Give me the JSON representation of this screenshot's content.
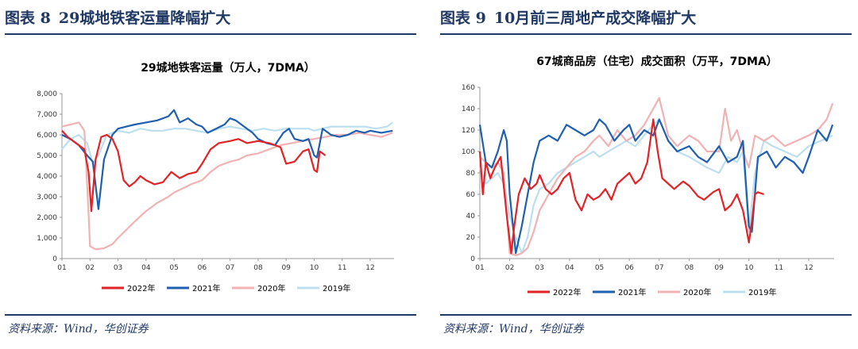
{
  "panels": [
    {
      "fig_label": "图表 8",
      "fig_title": "29城地铁客运量降幅扩大",
      "source": "资料来源：Wind，华创证券"
    },
    {
      "fig_label": "图表 9",
      "fig_title": "10月前三周地产成交降幅扩大",
      "source": "资料来源：Wind，华创证券"
    }
  ],
  "chart_data": [
    {
      "type": "line",
      "title": "29城地铁客运量（万人，7DMA）",
      "x_ticks": [
        "01",
        "02",
        "03",
        "04",
        "05",
        "06",
        "07",
        "08",
        "09",
        "10",
        "11",
        "12"
      ],
      "xlabel": "",
      "ylabel": "",
      "ylim": [
        0,
        8000
      ],
      "y_ticks": [
        "0",
        "1,000",
        "2,000",
        "3,000",
        "4,000",
        "5,000",
        "6,000",
        "7,000",
        "8,000"
      ],
      "y_tick_values": [
        0,
        1000,
        2000,
        3000,
        4000,
        5000,
        6000,
        7000,
        8000
      ],
      "legend_position": "bottom",
      "series": [
        {
          "name": "2022年",
          "color": "#e32227",
          "x": [
            1.0,
            1.2,
            1.5,
            1.8,
            1.95,
            2.05,
            2.2,
            2.4,
            2.6,
            2.8,
            3.0,
            3.2,
            3.4,
            3.6,
            3.8,
            4.0,
            4.3,
            4.6,
            4.9,
            5.2,
            5.5,
            5.8,
            6.0,
            6.3,
            6.6,
            7.0,
            7.3,
            7.6,
            8.0,
            8.4,
            8.8,
            9.0,
            9.3,
            9.6,
            9.8,
            10.0,
            10.1,
            10.2,
            10.4
          ],
          "values": [
            6200,
            5900,
            5600,
            5300,
            4200,
            2300,
            4800,
            5900,
            6000,
            5800,
            5200,
            3800,
            3500,
            3700,
            4000,
            3800,
            3600,
            3700,
            4200,
            3900,
            4100,
            4200,
            4600,
            5300,
            5600,
            5700,
            5800,
            5600,
            5700,
            5600,
            5400,
            4600,
            4700,
            5200,
            5300,
            4300,
            4200,
            5200,
            5000
          ]
        },
        {
          "name": "2021年",
          "color": "#1f5fb0",
          "x": [
            1.0,
            1.3,
            1.6,
            1.9,
            2.1,
            2.3,
            2.5,
            2.8,
            3.0,
            3.3,
            3.6,
            4.0,
            4.4,
            4.8,
            5.0,
            5.2,
            5.5,
            5.8,
            6.0,
            6.2,
            6.5,
            6.8,
            7.0,
            7.2,
            7.5,
            7.8,
            8.0,
            8.3,
            8.6,
            8.9,
            9.1,
            9.3,
            9.6,
            9.8,
            10.0,
            10.1,
            10.3,
            10.6,
            10.9,
            11.2,
            11.5,
            11.8,
            12.0,
            12.4,
            12.8
          ],
          "values": [
            6000,
            5800,
            5500,
            5000,
            4700,
            2400,
            4800,
            6000,
            6300,
            6400,
            6500,
            6600,
            6700,
            6900,
            7200,
            6600,
            6800,
            6500,
            6400,
            6100,
            6300,
            6500,
            6800,
            6700,
            6400,
            6100,
            5800,
            5600,
            5500,
            6100,
            6300,
            5800,
            5700,
            5800,
            5000,
            4900,
            6300,
            6000,
            5900,
            6000,
            6200,
            6100,
            6200,
            6100,
            6200
          ]
        },
        {
          "name": "2020年",
          "color": "#f0b2b2",
          "x": [
            1.0,
            1.3,
            1.6,
            1.8,
            1.95,
            2.0,
            2.2,
            2.5,
            2.8,
            3.0,
            3.3,
            3.6,
            4.0,
            4.4,
            4.8,
            5.0,
            5.3,
            5.6,
            6.0,
            6.3,
            6.6,
            7.0,
            7.3,
            7.6,
            8.0,
            8.4,
            8.8,
            9.2,
            9.6,
            10.0,
            10.4,
            10.8,
            11.2,
            11.6,
            12.0,
            12.4,
            12.8
          ],
          "values": [
            6400,
            6500,
            6600,
            6200,
            2200,
            600,
            450,
            500,
            700,
            1000,
            1400,
            1800,
            2300,
            2700,
            3000,
            3200,
            3400,
            3600,
            3800,
            4200,
            4500,
            4700,
            4800,
            5000,
            5100,
            5300,
            5500,
            5600,
            5700,
            5800,
            5900,
            6000,
            6000,
            6100,
            6000,
            5900,
            6100
          ]
        },
        {
          "name": "2019年",
          "color": "#bcdff0",
          "x": [
            1.0,
            1.3,
            1.6,
            1.9,
            2.1,
            2.3,
            2.6,
            3.0,
            3.4,
            3.8,
            4.2,
            4.6,
            5.0,
            5.4,
            5.8,
            6.2,
            6.6,
            7.0,
            7.4,
            7.8,
            8.2,
            8.6,
            9.0,
            9.4,
            9.8,
            10.0,
            10.3,
            10.6,
            11.0,
            11.4,
            11.8,
            12.2,
            12.6,
            12.8
          ],
          "values": [
            5300,
            5800,
            6000,
            5600,
            4600,
            5000,
            6000,
            6200,
            6100,
            6300,
            6200,
            6200,
            6300,
            6300,
            6200,
            6100,
            6300,
            6400,
            6300,
            6200,
            6300,
            6200,
            6300,
            6300,
            6300,
            6200,
            6300,
            6400,
            6400,
            6400,
            6400,
            6300,
            6400,
            6600
          ]
        }
      ]
    },
    {
      "type": "line",
      "title": "67城商品房（住宅）成交面积（万平，7DMA）",
      "x_ticks": [
        "01",
        "02",
        "03",
        "04",
        "05",
        "06",
        "07",
        "08",
        "09",
        "10",
        "11",
        "12"
      ],
      "xlabel": "",
      "ylabel": "",
      "ylim": [
        0,
        160
      ],
      "y_ticks": [
        "0",
        "20",
        "40",
        "60",
        "80",
        "100",
        "120",
        "140",
        "160"
      ],
      "y_tick_values": [
        0,
        20,
        40,
        60,
        80,
        100,
        120,
        140,
        160
      ],
      "legend_position": "bottom",
      "series": [
        {
          "name": "2022年",
          "color": "#e32227",
          "x": [
            1.0,
            1.1,
            1.2,
            1.35,
            1.5,
            1.7,
            1.9,
            2.05,
            2.15,
            2.3,
            2.5,
            2.7,
            2.9,
            3.0,
            3.2,
            3.4,
            3.6,
            3.8,
            4.0,
            4.2,
            4.4,
            4.6,
            4.8,
            5.0,
            5.2,
            5.4,
            5.6,
            5.8,
            6.0,
            6.2,
            6.4,
            6.6,
            6.8,
            6.95,
            7.1,
            7.3,
            7.5,
            7.8,
            8.0,
            8.3,
            8.5,
            8.8,
            9.0,
            9.2,
            9.4,
            9.6,
            9.8,
            9.9,
            10.0,
            10.1,
            10.2,
            10.3,
            10.5
          ],
          "values": [
            100,
            60,
            90,
            75,
            85,
            95,
            40,
            5,
            30,
            60,
            75,
            65,
            70,
            78,
            65,
            60,
            65,
            75,
            80,
            55,
            45,
            60,
            55,
            58,
            65,
            55,
            70,
            75,
            80,
            70,
            75,
            90,
            130,
            100,
            75,
            70,
            65,
            72,
            68,
            58,
            55,
            62,
            65,
            45,
            50,
            60,
            45,
            30,
            15,
            35,
            60,
            62,
            60
          ]
        },
        {
          "name": "2021年",
          "color": "#1f5fb0",
          "x": [
            1.0,
            1.2,
            1.4,
            1.6,
            1.8,
            1.9,
            2.0,
            2.2,
            2.4,
            2.6,
            2.8,
            3.0,
            3.3,
            3.6,
            3.9,
            4.2,
            4.5,
            4.8,
            5.0,
            5.2,
            5.5,
            5.8,
            6.0,
            6.2,
            6.5,
            6.8,
            7.0,
            7.3,
            7.6,
            8.0,
            8.3,
            8.6,
            9.0,
            9.3,
            9.6,
            9.8,
            10.0,
            10.1,
            10.3,
            10.6,
            10.9,
            11.2,
            11.5,
            11.8,
            12.0,
            12.3,
            12.6,
            12.8
          ],
          "values": [
            125,
            90,
            85,
            100,
            120,
            110,
            60,
            5,
            30,
            60,
            90,
            110,
            115,
            110,
            125,
            120,
            115,
            120,
            130,
            125,
            110,
            120,
            125,
            110,
            120,
            115,
            130,
            110,
            100,
            105,
            95,
            90,
            105,
            90,
            95,
            110,
            30,
            25,
            95,
            100,
            85,
            95,
            90,
            80,
            95,
            120,
            110,
            125
          ]
        },
        {
          "name": "2020年",
          "color": "#f0b2b2",
          "x": [
            1.0,
            1.2,
            1.4,
            1.6,
            1.8,
            2.0,
            2.2,
            2.4,
            2.6,
            2.8,
            3.0,
            3.3,
            3.6,
            3.9,
            4.2,
            4.5,
            4.8,
            5.0,
            5.3,
            5.6,
            5.9,
            6.2,
            6.5,
            6.8,
            7.0,
            7.3,
            7.6,
            8.0,
            8.3,
            8.6,
            9.0,
            9.2,
            9.4,
            9.6,
            9.8,
            10.0,
            10.2,
            10.5,
            10.8,
            11.2,
            11.6,
            12.0,
            12.3,
            12.6,
            12.8
          ],
          "values": [
            95,
            90,
            85,
            90,
            80,
            5,
            3,
            5,
            10,
            25,
            45,
            60,
            75,
            85,
            95,
            100,
            110,
            115,
            105,
            120,
            110,
            115,
            125,
            140,
            150,
            115,
            105,
            115,
            110,
            100,
            100,
            140,
            110,
            120,
            100,
            85,
            115,
            110,
            115,
            105,
            110,
            115,
            120,
            130,
            145
          ]
        },
        {
          "name": "2019年",
          "color": "#bcdff0",
          "x": [
            1.0,
            1.2,
            1.4,
            1.6,
            1.8,
            2.0,
            2.2,
            2.4,
            2.6,
            2.8,
            3.0,
            3.3,
            3.6,
            3.9,
            4.2,
            4.5,
            4.8,
            5.0,
            5.3,
            5.6,
            5.9,
            6.2,
            6.5,
            6.8,
            7.0,
            7.3,
            7.6,
            8.0,
            8.3,
            8.6,
            9.0,
            9.3,
            9.6,
            9.8,
            10.0,
            10.2,
            10.5,
            10.8,
            11.2,
            11.6,
            12.0,
            12.4,
            12.8
          ],
          "values": [
            85,
            70,
            75,
            80,
            70,
            40,
            20,
            5,
            20,
            50,
            65,
            70,
            80,
            85,
            90,
            95,
            100,
            95,
            100,
            105,
            110,
            105,
            115,
            125,
            130,
            110,
            100,
            95,
            90,
            85,
            80,
            95,
            90,
            100,
            25,
            80,
            110,
            105,
            100,
            95,
            105,
            110,
            115
          ]
        }
      ]
    }
  ]
}
